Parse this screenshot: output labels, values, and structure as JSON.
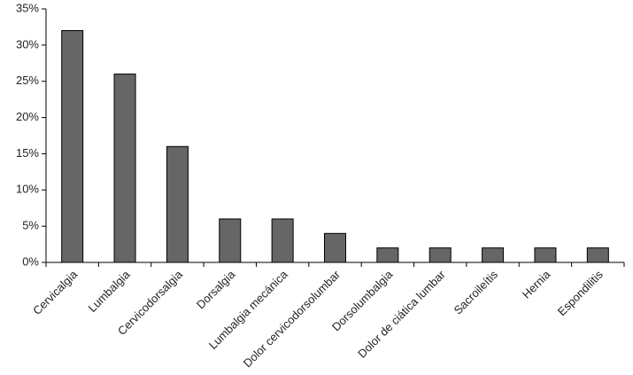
{
  "chart_data": {
    "type": "bar",
    "categories": [
      "Cervicalgia",
      "Lumbalgia",
      "Cervicodorsalgia",
      "Dorsalgia",
      "Lumbalgia mecánica",
      "Dolor cervicodorsolumbar",
      "Dorsolumbalgia",
      "Dolor de ciática lumbar",
      "Sacroileítis",
      "Hernia",
      "Espondilitis"
    ],
    "values": [
      32,
      26,
      16,
      6,
      6,
      4,
      2,
      2,
      2,
      2,
      2
    ],
    "color": "#666666",
    "ylim": [
      0,
      35
    ],
    "yticks": [
      {
        "value": 0,
        "label": "0%"
      },
      {
        "value": 5,
        "label": "5%"
      },
      {
        "value": 10,
        "label": "10%"
      },
      {
        "value": 15,
        "label": "15%"
      },
      {
        "value": 20,
        "label": "20%"
      },
      {
        "value": 25,
        "label": "25%"
      },
      {
        "value": 30,
        "label": "30%"
      },
      {
        "value": 35,
        "label": "35%"
      }
    ],
    "grid": false
  }
}
